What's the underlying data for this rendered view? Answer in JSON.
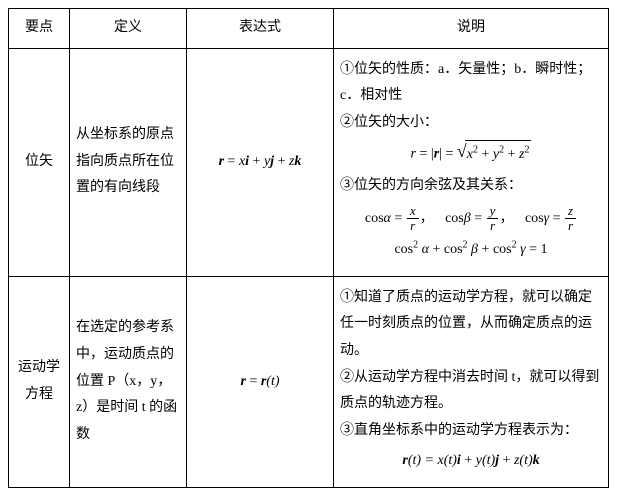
{
  "headers": {
    "c1": "要点",
    "c2": "定义",
    "c3": "表达式",
    "c4": "说明"
  },
  "row1": {
    "name": "位矢",
    "def": "从坐标系的原点指向质点所在位置的有向线段",
    "expr_parts": {
      "r": "r",
      "eq": " = ",
      "x": "x",
      "i": "i",
      "p1": " + ",
      "y": "y",
      "j": "j",
      "p2": " + ",
      "z": "z",
      "k": "k"
    },
    "desc": {
      "l1a": "①位矢的性质：a．矢量性；b．瞬时性；",
      "l1b": "c．相对性",
      "l2": "②位矢的大小：",
      "mag": {
        "r": "r",
        "eq": " = |",
        "rb": "r",
        "eq2": "| = ",
        "x2": "x",
        "y2": "y",
        "z2": "z",
        "sup": "2",
        "plus": " + "
      },
      "l3": "③位矢的方向余弦及其关系：",
      "cos": {
        "cosA": "cos",
        "a": "α",
        "eq": " = ",
        "x": "x",
        "y": "y",
        "z": "z",
        "r": "r",
        "b": "β",
        "g": "γ",
        "sep": "， "
      },
      "id": {
        "cos2a": "cos",
        "a": "α",
        "plus": " + ",
        "b": "β",
        "g": "γ",
        "eq1": " = 1",
        "sup": "2"
      }
    }
  },
  "row2": {
    "name_l1": "运动学",
    "name_l2": "方程",
    "def": "在选定的参考系中，运动质点的位置 P（x，y，z）是时间 t 的函数",
    "expr": {
      "r": "r",
      "eq": " = ",
      "rb": "r",
      "t": "(t)"
    },
    "desc": {
      "l1": "①知道了质点的运动学方程，就可以确定任一时刻质点的位置，从而确定质点的运动。",
      "l2": "②从运动学方程中消去时间 t，就可以得到质点的轨迹方程。",
      "l3": "③直角坐标系中的运动学方程表示为：",
      "f": {
        "r": "r",
        "t": "(t) = ",
        "x": "x",
        "tt": "(t)",
        "i": "i",
        "p": " + ",
        "y": "y",
        "j": "j",
        "z": "z",
        "k": "k"
      }
    }
  }
}
